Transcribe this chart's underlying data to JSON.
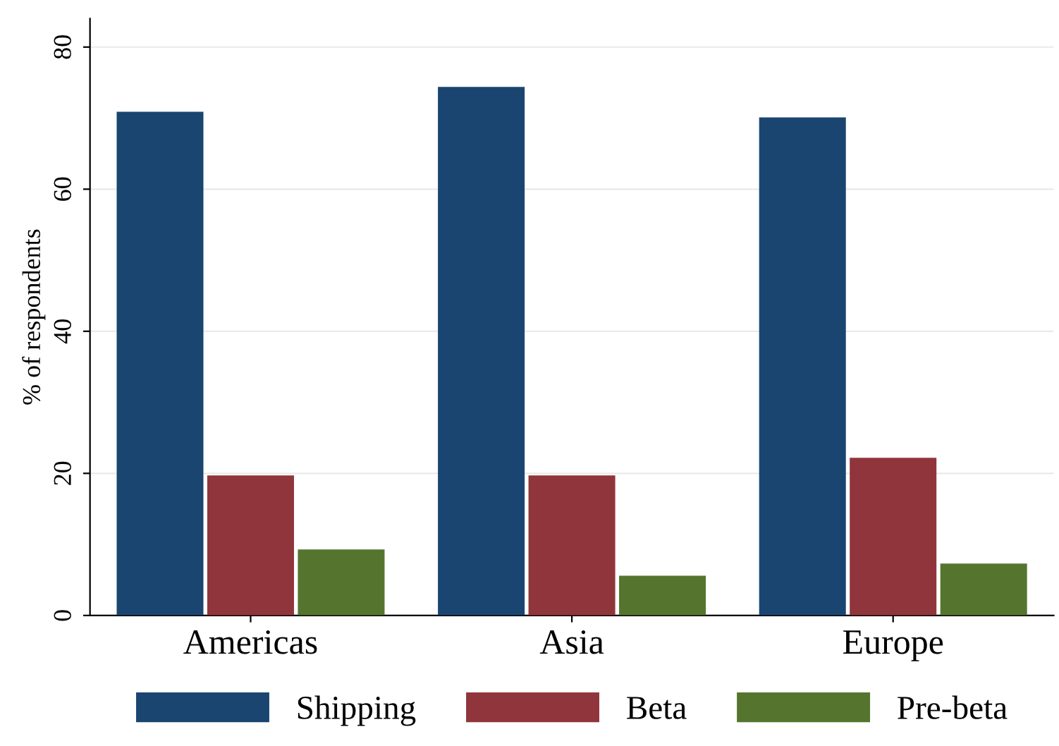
{
  "chart_data": {
    "type": "bar",
    "ylabel": "% of respondents",
    "categories": [
      "Americas",
      "Asia",
      "Europe"
    ],
    "series": [
      {
        "name": "Shipping",
        "color": "#1a4570",
        "values": [
          70.9,
          74.4,
          70.1
        ]
      },
      {
        "name": "Beta",
        "color": "#90353b",
        "values": [
          19.7,
          19.7,
          22.2
        ]
      },
      {
        "name": "Pre-beta",
        "color": "#55752f",
        "values": [
          9.3,
          5.6,
          7.3
        ]
      }
    ],
    "ylim": [
      0,
      84
    ],
    "yticks": [
      0,
      20,
      40,
      60,
      80
    ],
    "grid": "y",
    "legend": "bottom"
  }
}
